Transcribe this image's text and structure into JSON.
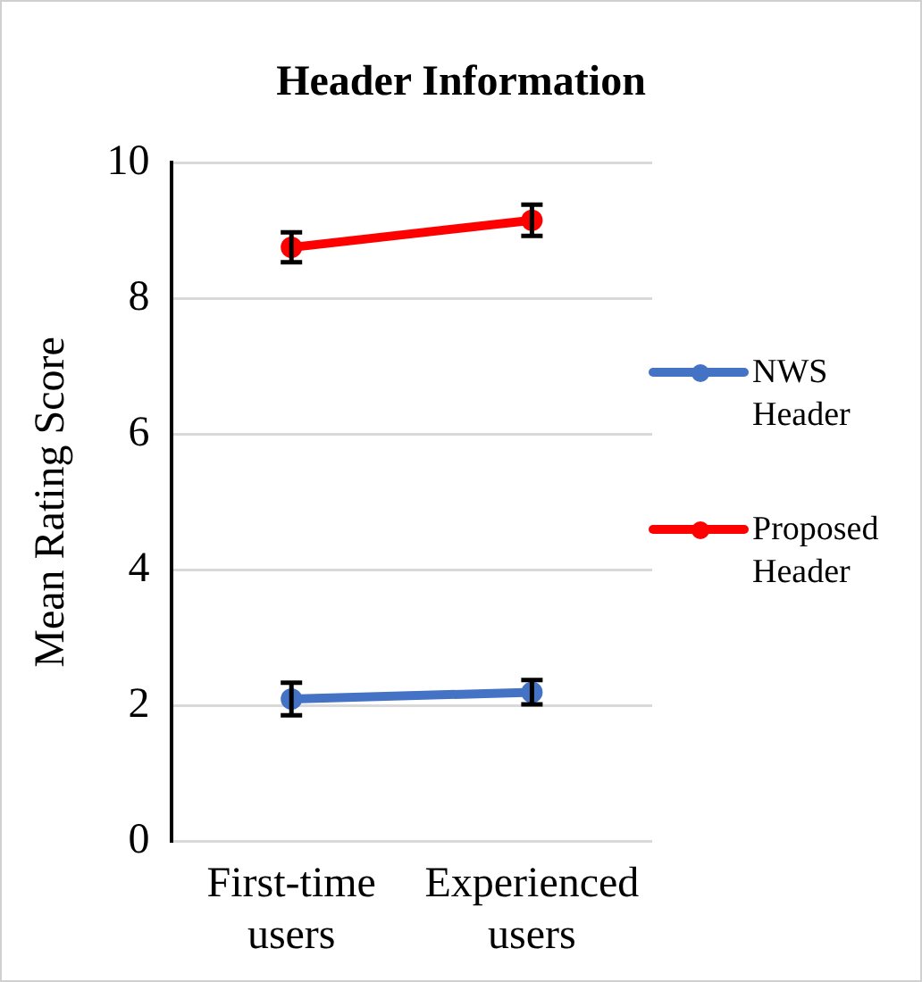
{
  "chart_data": {
    "type": "line",
    "title": "Header Information",
    "ylabel": "Mean Rating Score",
    "categories": [
      "First-time users",
      "Experienced users"
    ],
    "series": [
      {
        "name": "NWS Header",
        "color": "#4472c4",
        "values": [
          2.1,
          2.2
        ],
        "errors": [
          0.24,
          0.18
        ]
      },
      {
        "name": "Proposed Header",
        "color": "#ff0000",
        "values": [
          8.75,
          9.15
        ],
        "errors": [
          0.22,
          0.23
        ]
      }
    ],
    "ylim": [
      0,
      10
    ],
    "yticks": [
      0,
      2,
      4,
      6,
      8,
      10
    ],
    "grid": "y",
    "legend": "right",
    "marker": "circle",
    "line_style": "solid"
  }
}
